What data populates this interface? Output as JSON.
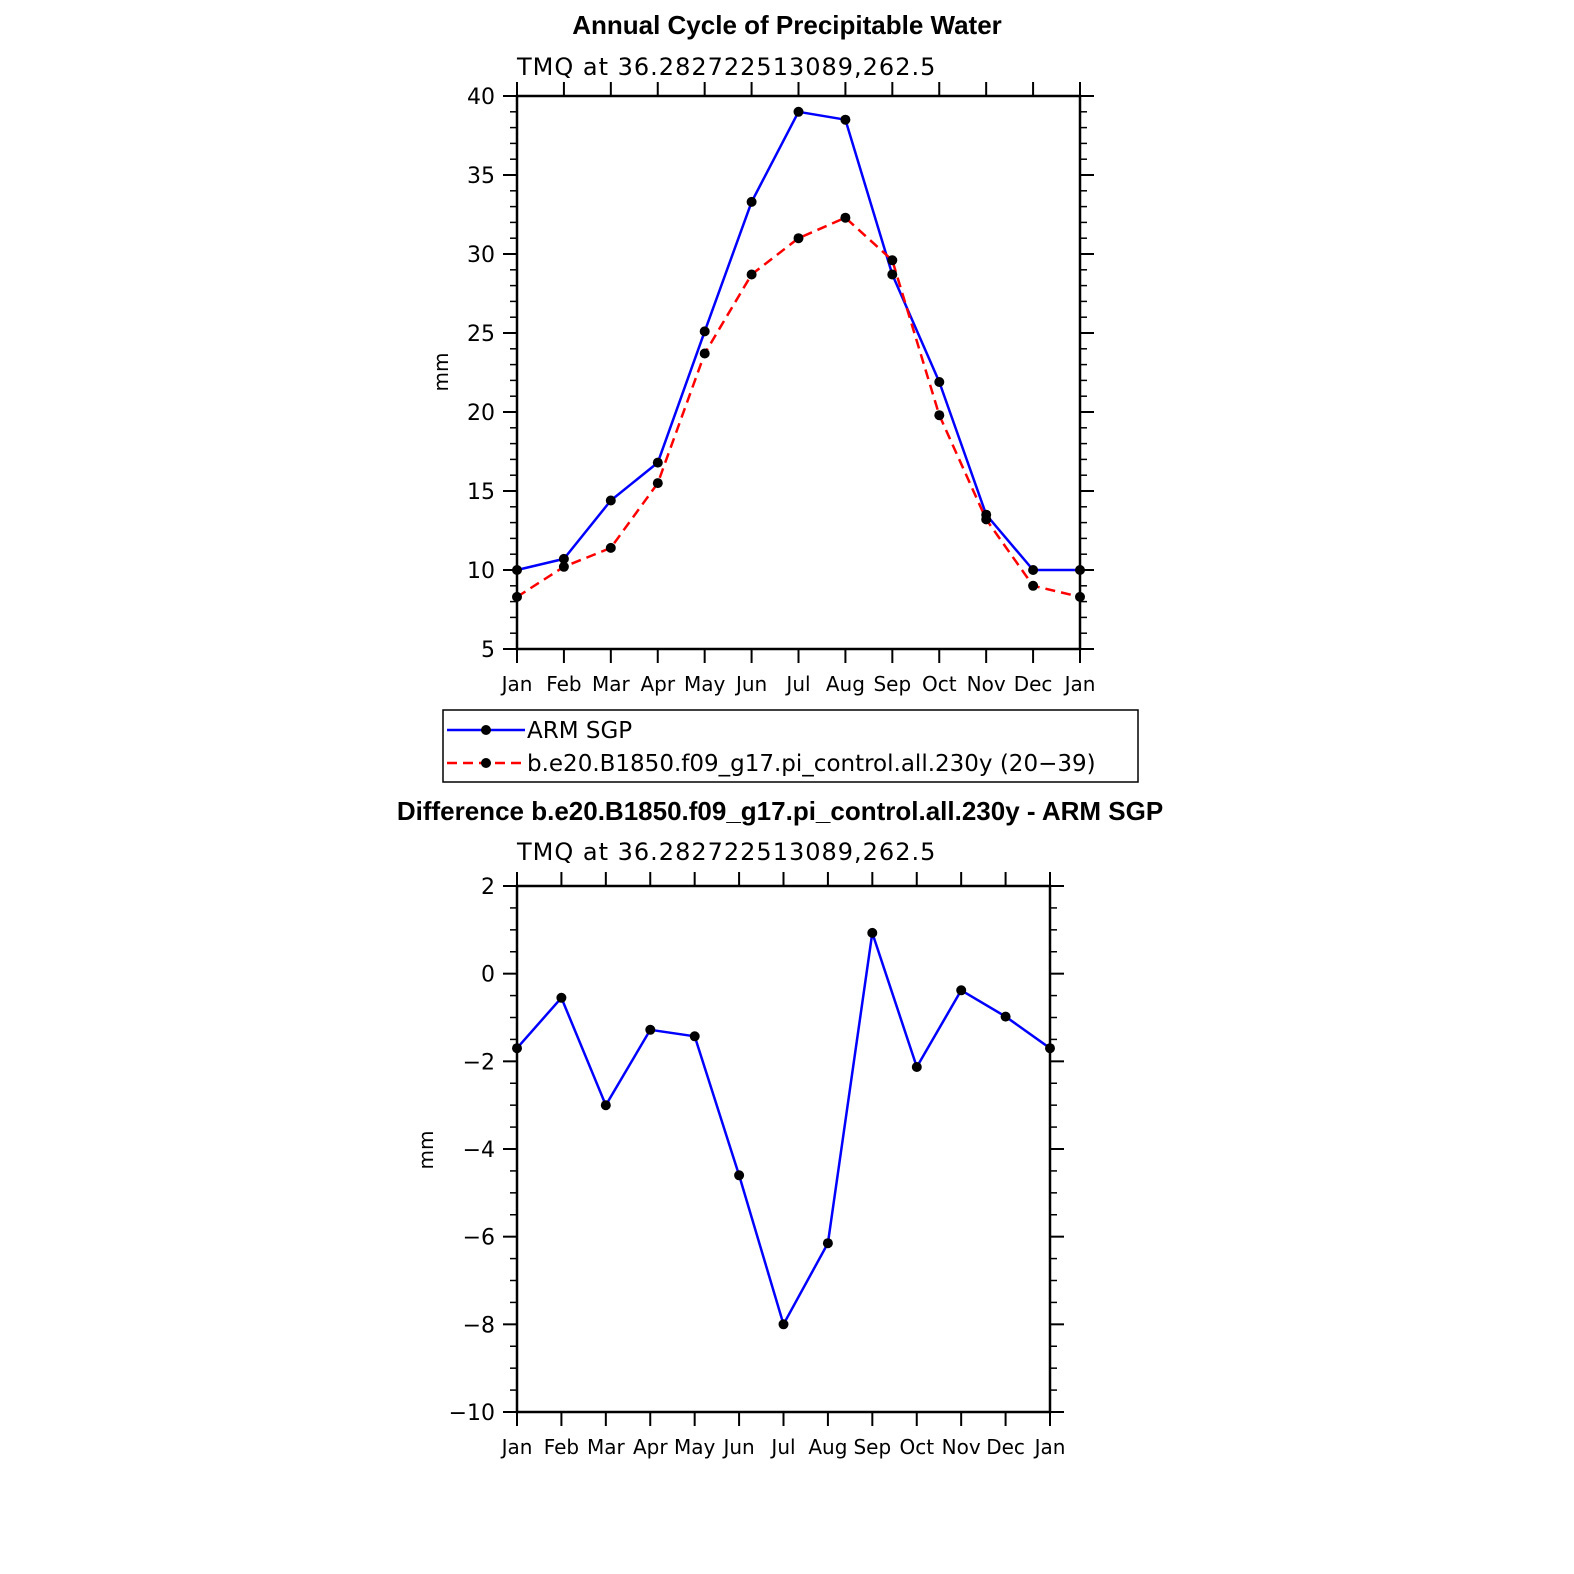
{
  "chart_data": [
    {
      "type": "line",
      "title": "Annual Cycle of Precipitable Water",
      "subtitle": "TMQ at 36.282722513089,262.5",
      "ylabel": "mm",
      "xlabel": "",
      "categories": [
        "Jan",
        "Feb",
        "Mar",
        "Apr",
        "May",
        "Jun",
        "Jul",
        "Aug",
        "Sep",
        "Oct",
        "Nov",
        "Dec",
        "Jan"
      ],
      "ylim": [
        5,
        40
      ],
      "yticks": [
        "5",
        "10",
        "15",
        "20",
        "25",
        "30",
        "35",
        "40"
      ],
      "grid": false,
      "legend_position": "below",
      "series": [
        {
          "name": "ARM SGP",
          "color": "#0000ff",
          "style": "solid",
          "marker": "circle",
          "values": [
            10.0,
            10.7,
            14.4,
            16.8,
            25.1,
            33.3,
            39.0,
            38.5,
            28.7,
            21.9,
            13.5,
            10.0,
            10.0
          ]
        },
        {
          "name": "b.e20.B1850.f09_g17.pi_control.all.230y (20−39)",
          "color": "#ff0000",
          "style": "dashed",
          "marker": "circle",
          "values": [
            8.3,
            10.2,
            11.4,
            15.5,
            23.7,
            28.7,
            31.0,
            32.3,
            29.6,
            19.8,
            13.2,
            9.0,
            8.3
          ]
        }
      ]
    },
    {
      "type": "line",
      "title": "Difference b.e20.B1850.f09_g17.pi_control.all.230y - ARM SGP",
      "subtitle": "TMQ at 36.282722513089,262.5",
      "ylabel": "mm",
      "xlabel": "",
      "categories": [
        "Jan",
        "Feb",
        "Mar",
        "Apr",
        "May",
        "Jun",
        "Jul",
        "Aug",
        "Sep",
        "Oct",
        "Nov",
        "Dec",
        "Jan"
      ],
      "ylim": [
        -10,
        2
      ],
      "yticks": [
        "−10",
        "−8",
        "−6",
        "−4",
        "−2",
        "0",
        "2"
      ],
      "grid": false,
      "series": [
        {
          "color": "#0000ff",
          "style": "solid",
          "marker": "circle",
          "values": [
            -1.7,
            -0.55,
            -3.0,
            -1.28,
            -1.43,
            -4.6,
            -8.0,
            -6.15,
            0.93,
            -2.13,
            -0.38,
            -0.98,
            -1.7
          ]
        }
      ]
    }
  ]
}
